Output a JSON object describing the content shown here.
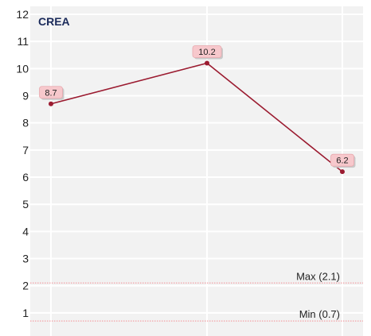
{
  "chart_data": {
    "type": "line",
    "title": "CREA",
    "xlabel": "",
    "ylabel": "",
    "ylim": [
      0.3,
      12
    ],
    "y_ticks": [
      1,
      2,
      3,
      4,
      5,
      6,
      7,
      8,
      9,
      10,
      11,
      12
    ],
    "grid": true,
    "series": [
      {
        "values": [
          8.7,
          10.2,
          6.2
        ],
        "labels": [
          "8.7",
          "10.2",
          "6.2"
        ]
      }
    ],
    "reference_lines": [
      {
        "value": 2.1,
        "label": "Max (2.1)"
      },
      {
        "value": 0.7,
        "label": "Min (0.7)"
      }
    ],
    "colors": {
      "series": "#9b1b30",
      "reference": "#f3a1a6",
      "label_fill": "#f7c8cc",
      "plot_background": "#f2f2f2",
      "title": "#1a2a5a"
    }
  }
}
